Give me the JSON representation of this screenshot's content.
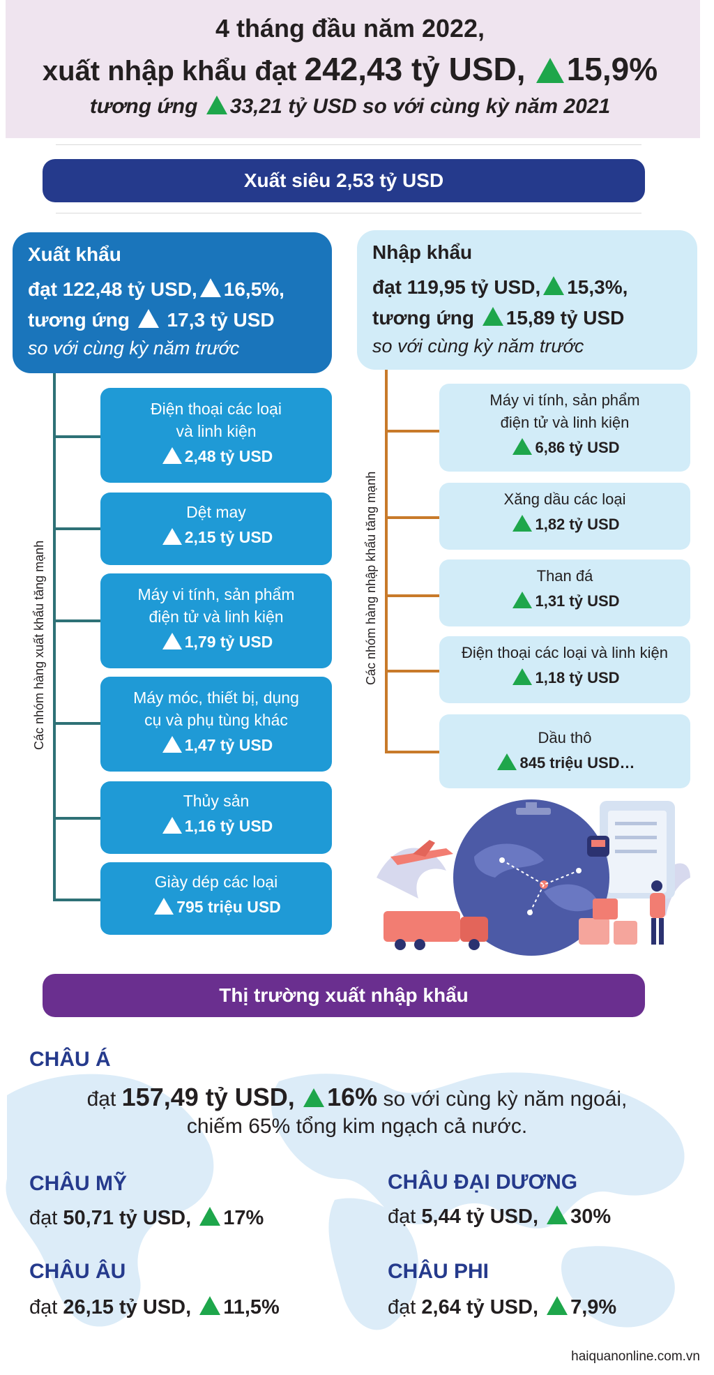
{
  "header": {
    "line1": "4 tháng đầu năm 2022,",
    "line2_prefix": "xuất nhập khẩu đạt",
    "line2_value": "242,43 tỷ USD,",
    "line2_growth": "15,9%",
    "line3_prefix": "tương ứng",
    "line3_value": "33,21 tỷ USD so với cùng kỳ năm 2021"
  },
  "trade_balance": "Xuất siêu 2,53 tỷ USD",
  "export": {
    "title": "Xuất khẩu",
    "line1_prefix": "đạt 122,48 tỷ USD,",
    "line1_growth": "16,5%,",
    "line2_prefix": "tương ứng",
    "line2_value": "17,3 tỷ USD",
    "sub": "so với cùng kỳ năm trước",
    "side_label": "Các nhóm hàng xuất khẩu tăng mạnh",
    "items": [
      {
        "name1": "Điện thoại các loại",
        "name2": "và linh kiện",
        "value": "2,48 tỷ USD"
      },
      {
        "name1": "Dệt may",
        "name2": "",
        "value": "2,15 tỷ USD"
      },
      {
        "name1": "Máy vi tính, sản phẩm",
        "name2": "điện tử và linh kiện",
        "value": "1,79 tỷ USD"
      },
      {
        "name1": "Máy móc, thiết bị, dụng",
        "name2": "cụ và phụ tùng khác",
        "value": "1,47 tỷ USD"
      },
      {
        "name1": "Thủy sản",
        "name2": "",
        "value": "1,16 tỷ USD"
      },
      {
        "name1": "Giày dép các loại",
        "name2": "",
        "value": "795 triệu USD"
      }
    ]
  },
  "import": {
    "title": "Nhập khẩu",
    "line1_prefix": "đạt 119,95 tỷ USD,",
    "line1_growth": "15,3%,",
    "line2_prefix": "tương ứng",
    "line2_value": "15,89 tỷ USD",
    "sub": "so với cùng kỳ năm trước",
    "side_label": "Các nhóm hàng nhập khẩu tăng mạnh",
    "items": [
      {
        "name1": "Máy vi tính, sản phẩm",
        "name2": "điện tử và linh kiện",
        "value": "6,86 tỷ USD"
      },
      {
        "name1": "Xăng dầu các loại",
        "name2": "",
        "value": "1,82 tỷ USD"
      },
      {
        "name1": "Than đá",
        "name2": "",
        "value": "1,31 tỷ USD"
      },
      {
        "name1": "Điện thoại các loại và linh kiện",
        "name2": "",
        "value": "1,18 tỷ USD"
      },
      {
        "name1": "Dầu thô",
        "name2": "",
        "value": "845 triệu USD…"
      }
    ]
  },
  "markets": {
    "title": "Thị trường xuất nhập khẩu",
    "asia": {
      "name": "CHÂU Á",
      "prefix": "đạt",
      "value": "157,49 tỷ USD,",
      "growth": "16%",
      "suffix": "so với cùng kỳ năm ngoái,",
      "line2": "chiếm 65% tổng kim ngạch cả nước."
    },
    "america": {
      "name": "CHÂU MỸ",
      "prefix": "đạt",
      "value": "50,71 tỷ USD,",
      "growth": "17%"
    },
    "oceania": {
      "name": "CHÂU ĐẠI DƯƠNG",
      "prefix": "đạt",
      "value": "5,44 tỷ USD,",
      "growth": "30%"
    },
    "europe": {
      "name": "CHÂU ÂU",
      "prefix": "đạt",
      "value": "26,15 tỷ USD,",
      "growth": "11,5%"
    },
    "africa": {
      "name": "CHÂU PHI",
      "prefix": "đạt",
      "value": "2,64 tỷ USD,",
      "growth": "7,9%"
    }
  },
  "footer": "haiquanonline.com.vn",
  "colors": {
    "header_bg": "#efe4ef",
    "navy_pill": "#253a8c",
    "purple_pill": "#6a2f8f",
    "export_head": "#1a75bb",
    "export_box": "#1f9ad6",
    "import_box": "#d2ecf8",
    "growth_triangle": "#1ea64b"
  }
}
